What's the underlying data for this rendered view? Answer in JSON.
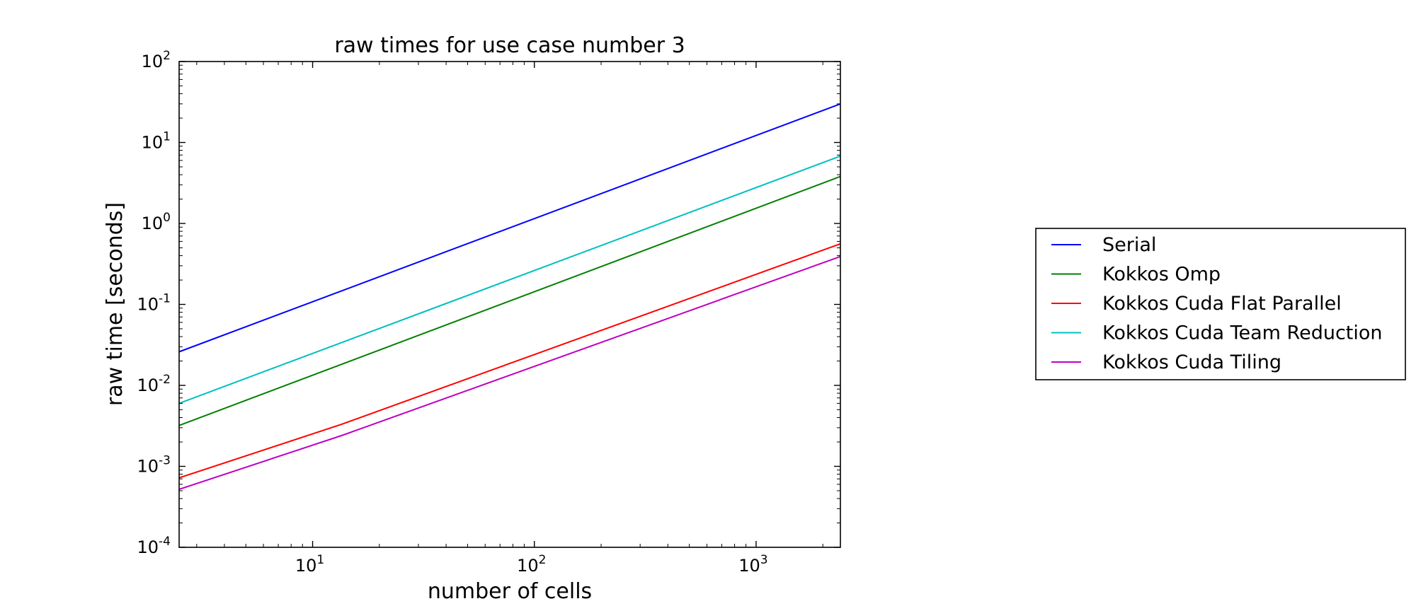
{
  "chart_data": {
    "type": "line",
    "title": "raw times for use case number 3",
    "xlabel": "number of cells",
    "ylabel": "raw time [seconds]",
    "xscale": "log",
    "yscale": "log",
    "xlim": [
      2.5,
      2400
    ],
    "ylim": [
      0.0001,
      100
    ],
    "xticks": [
      {
        "value": 10,
        "base": "10",
        "exp": "1"
      },
      {
        "value": 100,
        "base": "10",
        "exp": "2"
      },
      {
        "value": 1000,
        "base": "10",
        "exp": "3"
      }
    ],
    "yticks": [
      {
        "value": 0.0001,
        "base": "10",
        "exp": "-4"
      },
      {
        "value": 0.001,
        "base": "10",
        "exp": "-3"
      },
      {
        "value": 0.01,
        "base": "10",
        "exp": "-2"
      },
      {
        "value": 0.1,
        "base": "10",
        "exp": "-1"
      },
      {
        "value": 1,
        "base": "10",
        "exp": "0"
      },
      {
        "value": 10,
        "base": "10",
        "exp": "1"
      },
      {
        "value": 100,
        "base": "10",
        "exp": "2"
      }
    ],
    "grid": false,
    "legend_position": "outside-right",
    "series": [
      {
        "name": "Serial",
        "color": "#0000ff",
        "points": [
          [
            2.5,
            0.026
          ],
          [
            2400,
            30
          ]
        ]
      },
      {
        "name": "Kokkos Omp",
        "color": "#008000",
        "points": [
          [
            2.5,
            0.0032
          ],
          [
            2400,
            3.8
          ]
        ]
      },
      {
        "name": "Kokkos Cuda Flat Parallel",
        "color": "#ff0000",
        "points": [
          [
            2.5,
            0.00072
          ],
          [
            13.5,
            0.0033
          ],
          [
            2400,
            0.56
          ]
        ]
      },
      {
        "name": "Kokkos Cuda Team Reduction",
        "color": "#00bfbf",
        "points": [
          [
            2.5,
            0.006
          ],
          [
            2400,
            6.8
          ]
        ]
      },
      {
        "name": "Kokkos Cuda Tiling",
        "color": "#bf00bf",
        "points": [
          [
            2.5,
            0.00052
          ],
          [
            13.5,
            0.0024
          ],
          [
            2400,
            0.39
          ]
        ]
      }
    ]
  }
}
